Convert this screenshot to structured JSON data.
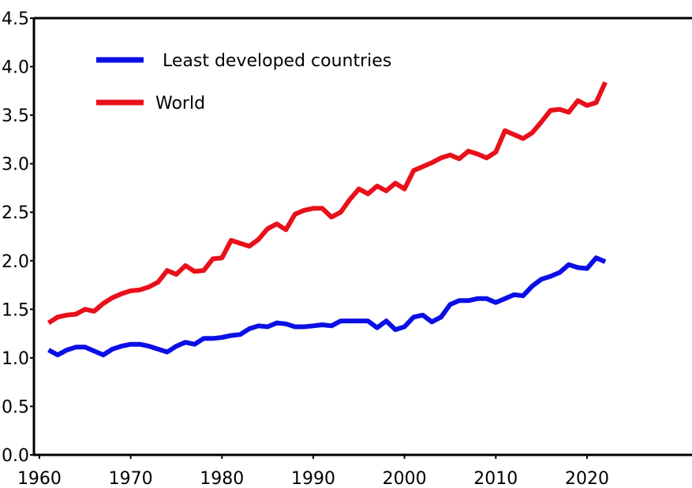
{
  "chart_data": {
    "type": "line",
    "x": [
      1961,
      1962,
      1963,
      1964,
      1965,
      1966,
      1967,
      1968,
      1969,
      1970,
      1971,
      1972,
      1973,
      1974,
      1975,
      1976,
      1977,
      1978,
      1979,
      1980,
      1981,
      1982,
      1983,
      1984,
      1985,
      1986,
      1987,
      1988,
      1989,
      1990,
      1991,
      1992,
      1993,
      1994,
      1995,
      1996,
      1997,
      1998,
      1999,
      2000,
      2001,
      2002,
      2003,
      2004,
      2005,
      2006,
      2007,
      2008,
      2009,
      2010,
      2011,
      2012,
      2013,
      2014,
      2015,
      2016,
      2017,
      2018,
      2019,
      2020,
      2021,
      2022
    ],
    "series": [
      {
        "name": "Least developed countries",
        "color": "#0b0fe6",
        "values": [
          1.08,
          1.03,
          1.08,
          1.11,
          1.11,
          1.07,
          1.03,
          1.09,
          1.12,
          1.14,
          1.14,
          1.12,
          1.09,
          1.06,
          1.12,
          1.16,
          1.14,
          1.2,
          1.2,
          1.21,
          1.23,
          1.24,
          1.3,
          1.33,
          1.32,
          1.36,
          1.35,
          1.32,
          1.32,
          1.33,
          1.34,
          1.33,
          1.38,
          1.38,
          1.38,
          1.38,
          1.31,
          1.38,
          1.29,
          1.32,
          1.42,
          1.44,
          1.37,
          1.42,
          1.55,
          1.59,
          1.59,
          1.61,
          1.61,
          1.57,
          1.61,
          1.65,
          1.64,
          1.74,
          1.81,
          1.84,
          1.88,
          1.96,
          1.93,
          1.92,
          2.03,
          1.99
        ]
      },
      {
        "name": "World",
        "color": "#e8101a",
        "values": [
          1.36,
          1.42,
          1.44,
          1.45,
          1.5,
          1.48,
          1.56,
          1.62,
          1.66,
          1.69,
          1.7,
          1.73,
          1.78,
          1.9,
          1.86,
          1.95,
          1.89,
          1.9,
          2.02,
          2.03,
          2.21,
          2.18,
          2.15,
          2.22,
          2.33,
          2.38,
          2.32,
          2.48,
          2.52,
          2.54,
          2.54,
          2.45,
          2.5,
          2.63,
          2.74,
          2.69,
          2.77,
          2.72,
          2.8,
          2.74,
          2.93,
          2.97,
          3.01,
          3.06,
          3.09,
          3.05,
          3.13,
          3.1,
          3.06,
          3.12,
          3.34,
          3.3,
          3.26,
          3.32,
          3.43,
          3.55,
          3.56,
          3.53,
          3.65,
          3.6,
          3.63,
          3.84
        ]
      }
    ],
    "xlim": [
      1959.4,
      2031.5
    ],
    "xticks": [
      1960,
      1970,
      1980,
      1990,
      2000,
      2010,
      2020
    ],
    "ylim": [
      0,
      4.5
    ],
    "yticks": [
      {
        "value": 0,
        "label": "0.0"
      },
      {
        "value": 0.5,
        "label": "0.5"
      },
      {
        "value": 1,
        "label": "1.0"
      },
      {
        "value": 1.5,
        "label": "1.5"
      },
      {
        "value": 2,
        "label": "2.0"
      },
      {
        "value": 2.5,
        "label": "2.5"
      },
      {
        "value": 3,
        "label": "3.0"
      },
      {
        "value": 3.5,
        "label": "3.5"
      },
      {
        "value": 4,
        "label": "4.0"
      },
      {
        "value": 4.5,
        "label": "4.5"
      }
    ],
    "legend": "upper-left"
  }
}
